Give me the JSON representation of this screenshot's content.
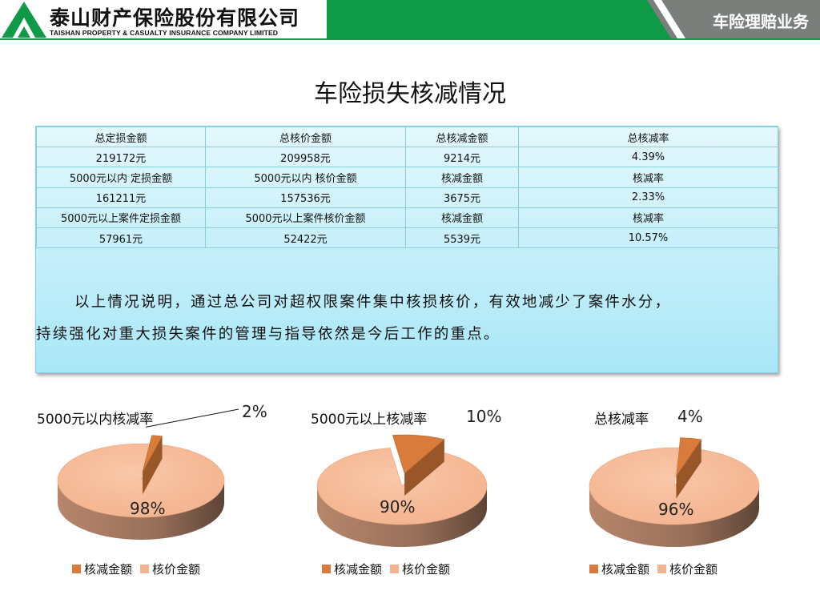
{
  "header": {
    "company_cn": "泰山财产保险股份有限公司",
    "company_en": "TAISHAN PROPERTY & CASUALTY INSURANCE COMPANY LIMITED",
    "section_title": "车险理赔业务"
  },
  "page_title": "车险损失核减情况",
  "table": {
    "rows": [
      [
        "总定损金额",
        "总核价金额",
        "总核减金额",
        "总核减率"
      ],
      [
        "219172元",
        "209958元",
        "9214元",
        "4.39%"
      ],
      [
        "5000元以内 定损金额",
        "5000元以内 核价金额",
        "核减金额",
        "核减率"
      ],
      [
        "161211元",
        "157536元",
        "3675元",
        "2.33%"
      ],
      [
        "5000元以上案件定损金额",
        "5000元以上案件核价金额",
        "核减金额",
        "核减率"
      ],
      [
        "57961元",
        "52422元",
        "5539元",
        "10.57%"
      ]
    ]
  },
  "note": {
    "line1": "以上情况说明，通过总公司对超权限案件集中核损核价，有效地减少了案件水分，",
    "line2": "持续强化对重大损失案件的管理与指导依然是今后工作的重点。"
  },
  "colors": {
    "brand_green": "#0f9a47",
    "reduction": "#d97b3a",
    "approved": "#f4b38f"
  },
  "chart_data": [
    {
      "type": "pie",
      "title": "5000元以内核减率",
      "labels": [
        "核减金额",
        "核价金额"
      ],
      "values": [
        2,
        98
      ],
      "data_labels": [
        "2%",
        "98%"
      ],
      "legend": "bottom"
    },
    {
      "type": "pie",
      "title": "5000元以上核减率",
      "labels": [
        "核减金额",
        "核价金额"
      ],
      "values": [
        10,
        90
      ],
      "data_labels": [
        "10%",
        "90%"
      ],
      "legend": "bottom"
    },
    {
      "type": "pie",
      "title": "总核减率",
      "labels": [
        "核减金额",
        "核价金额"
      ],
      "values": [
        4,
        96
      ],
      "data_labels": [
        "4%",
        "96%"
      ],
      "legend": "bottom"
    }
  ]
}
